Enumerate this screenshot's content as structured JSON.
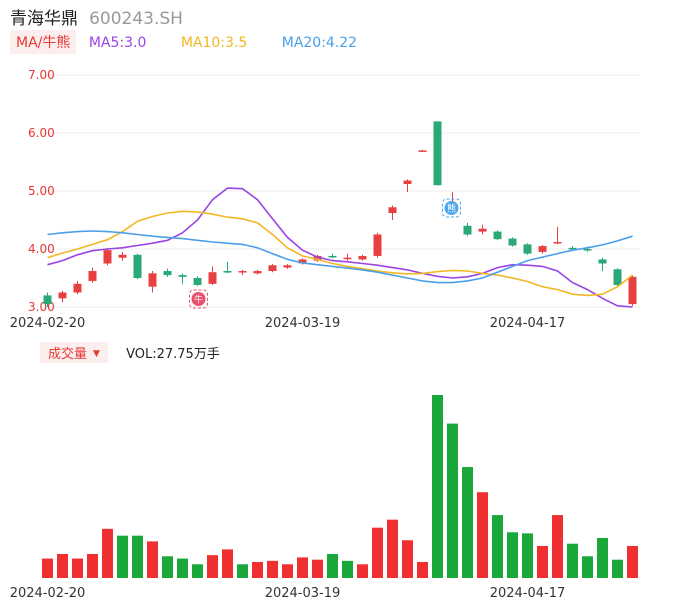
{
  "header": {
    "name": "青海华鼎",
    "code": "600243.SH"
  },
  "ma": {
    "tag": "MA/牛熊",
    "items": [
      {
        "label": "MA5:3.0",
        "color": "#9b44e6"
      },
      {
        "label": "MA10:3.5",
        "color": "#f2b824"
      },
      {
        "label": "MA20:4.22",
        "color": "#4b9fe8"
      }
    ]
  },
  "volume": {
    "tag": "成交量",
    "label": "VOL:27.75万手"
  },
  "icons": {
    "bull": "牛",
    "bear": "熊"
  },
  "colors": {
    "up": "#e84040",
    "down": "#2aa876",
    "volUp": "#f03030",
    "volDown": "#1aa83a",
    "axis": "#e53935",
    "bullBadge": "#e8506a",
    "bearBadge": "#4aa8e8"
  },
  "chart_data": [
    {
      "type": "candlestick",
      "y_ticks": [
        "7.00",
        "6.00",
        "5.00",
        "4.00",
        "3.00"
      ],
      "ylim": [
        3.0,
        7.0
      ],
      "x_tick_labels": [
        {
          "label": "2024-02-20",
          "index": 0
        },
        {
          "label": "2024-03-19",
          "index": 17
        },
        {
          "label": "2024-04-17",
          "index": 32
        }
      ],
      "candles": [
        {
          "o": 3.2,
          "c": 3.05,
          "h": 3.25,
          "l": 3.0
        },
        {
          "o": 3.15,
          "c": 3.25,
          "h": 3.28,
          "l": 3.08
        },
        {
          "o": 3.25,
          "c": 3.4,
          "h": 3.45,
          "l": 3.22
        },
        {
          "o": 3.45,
          "c": 3.62,
          "h": 3.68,
          "l": 3.42
        },
        {
          "o": 3.75,
          "c": 3.98,
          "h": 4.02,
          "l": 3.72
        },
        {
          "o": 3.85,
          "c": 3.9,
          "h": 3.95,
          "l": 3.8
        },
        {
          "o": 3.9,
          "c": 3.5,
          "h": 3.92,
          "l": 3.48
        },
        {
          "o": 3.35,
          "c": 3.58,
          "h": 3.62,
          "l": 3.25
        },
        {
          "o": 3.62,
          "c": 3.55,
          "h": 3.66,
          "l": 3.52
        },
        {
          "o": 3.55,
          "c": 3.52,
          "h": 3.58,
          "l": 3.4
        },
        {
          "o": 3.5,
          "c": 3.38,
          "h": 3.53,
          "l": 3.36
        },
        {
          "o": 3.4,
          "c": 3.6,
          "h": 3.7,
          "l": 3.38
        },
        {
          "o": 3.62,
          "c": 3.61,
          "h": 3.78,
          "l": 3.58
        },
        {
          "o": 3.6,
          "c": 3.62,
          "h": 3.64,
          "l": 3.55
        },
        {
          "o": 3.58,
          "c": 3.62,
          "h": 3.64,
          "l": 3.56
        },
        {
          "o": 3.62,
          "c": 3.72,
          "h": 3.74,
          "l": 3.6
        },
        {
          "o": 3.68,
          "c": 3.72,
          "h": 3.74,
          "l": 3.66
        },
        {
          "o": 3.75,
          "c": 3.82,
          "h": 3.84,
          "l": 3.73
        },
        {
          "o": 3.8,
          "c": 3.88,
          "h": 3.9,
          "l": 3.78
        },
        {
          "o": 3.88,
          "c": 3.86,
          "h": 3.92,
          "l": 3.84
        },
        {
          "o": 3.84,
          "c": 3.85,
          "h": 3.92,
          "l": 3.8
        },
        {
          "o": 3.82,
          "c": 3.88,
          "h": 3.9,
          "l": 3.8
        },
        {
          "o": 3.88,
          "c": 4.25,
          "h": 4.28,
          "l": 3.85
        },
        {
          "o": 4.62,
          "c": 4.72,
          "h": 4.75,
          "l": 4.5
        },
        {
          "o": 5.12,
          "c": 5.18,
          "h": 5.2,
          "l": 4.98
        },
        {
          "o": 5.69,
          "c": 5.7,
          "h": 5.71,
          "l": 5.68
        },
        {
          "o": 6.2,
          "c": 5.1,
          "h": 6.2,
          "l": 5.1
        },
        {
          "o": 4.62,
          "c": 4.68,
          "h": 4.98,
          "l": 4.6
        },
        {
          "o": 4.4,
          "c": 4.25,
          "h": 4.45,
          "l": 4.22
        },
        {
          "o": 4.3,
          "c": 4.35,
          "h": 4.42,
          "l": 4.25
        },
        {
          "o": 4.3,
          "c": 4.17,
          "h": 4.32,
          "l": 4.15
        },
        {
          "o": 4.18,
          "c": 4.06,
          "h": 4.2,
          "l": 4.04
        },
        {
          "o": 4.08,
          "c": 3.92,
          "h": 4.1,
          "l": 3.9
        },
        {
          "o": 3.95,
          "c": 4.05,
          "h": 4.07,
          "l": 3.92
        },
        {
          "o": 4.1,
          "c": 4.12,
          "h": 4.38,
          "l": 4.08
        },
        {
          "o": 4.02,
          "c": 4.0,
          "h": 4.05,
          "l": 3.98
        },
        {
          "o": 4.0,
          "c": 3.98,
          "h": 4.04,
          "l": 3.95
        },
        {
          "o": 3.82,
          "c": 3.75,
          "h": 3.85,
          "l": 3.62
        },
        {
          "o": 3.65,
          "c": 3.38,
          "h": 3.67,
          "l": 3.35
        },
        {
          "o": 3.05,
          "c": 3.52,
          "h": 3.55,
          "l": 3.02
        }
      ],
      "series": [
        {
          "name": "MA5",
          "values": [
            3.73,
            3.8,
            3.9,
            3.97,
            4.0,
            4.02,
            4.06,
            4.1,
            4.15,
            4.28,
            4.5,
            4.85,
            5.05,
            5.04,
            4.85,
            4.52,
            4.2,
            3.98,
            3.86,
            3.8,
            3.78,
            3.75,
            3.72,
            3.68,
            3.64,
            3.58,
            3.53,
            3.5,
            3.52,
            3.58,
            3.68,
            3.73,
            3.72,
            3.7,
            3.62,
            3.42,
            3.3,
            3.15,
            3.02,
            3.0
          ]
        },
        {
          "name": "MA10",
          "values": [
            3.85,
            3.93,
            4.0,
            4.08,
            4.16,
            4.3,
            4.48,
            4.56,
            4.62,
            4.65,
            4.64,
            4.6,
            4.55,
            4.52,
            4.45,
            4.25,
            4.02,
            3.88,
            3.82,
            3.75,
            3.7,
            3.66,
            3.62,
            3.59,
            3.57,
            3.58,
            3.61,
            3.63,
            3.62,
            3.58,
            3.55,
            3.5,
            3.44,
            3.35,
            3.3,
            3.22,
            3.2,
            3.22,
            3.35,
            3.55
          ]
        },
        {
          "name": "MA20",
          "values": [
            4.25,
            4.28,
            4.3,
            4.31,
            4.3,
            4.28,
            4.25,
            4.22,
            4.2,
            4.18,
            4.15,
            4.12,
            4.1,
            4.08,
            4.02,
            3.92,
            3.82,
            3.76,
            3.73,
            3.7,
            3.67,
            3.64,
            3.6,
            3.55,
            3.5,
            3.45,
            3.42,
            3.42,
            3.45,
            3.5,
            3.6,
            3.7,
            3.8,
            3.86,
            3.92,
            3.98,
            4.02,
            4.07,
            4.14,
            4.22
          ]
        }
      ]
    },
    {
      "type": "bar",
      "title": "VOL",
      "x_tick_labels": [
        {
          "label": "2024-02-20",
          "index": 0
        },
        {
          "label": "2024-03-19",
          "index": 17
        },
        {
          "label": "2024-04-17",
          "index": 32
        }
      ],
      "values": [
        {
          "v": 8.5,
          "d": "up"
        },
        {
          "v": 10.5,
          "d": "up"
        },
        {
          "v": 8.5,
          "d": "up"
        },
        {
          "v": 10.5,
          "d": "up"
        },
        {
          "v": 21.5,
          "d": "up"
        },
        {
          "v": 18.5,
          "d": "down"
        },
        {
          "v": 18.5,
          "d": "down"
        },
        {
          "v": 16.0,
          "d": "up"
        },
        {
          "v": 9.5,
          "d": "down"
        },
        {
          "v": 8.5,
          "d": "down"
        },
        {
          "v": 6.0,
          "d": "down"
        },
        {
          "v": 10.0,
          "d": "up"
        },
        {
          "v": 12.5,
          "d": "up"
        },
        {
          "v": 6.0,
          "d": "down"
        },
        {
          "v": 7.0,
          "d": "up"
        },
        {
          "v": 7.5,
          "d": "up"
        },
        {
          "v": 6.0,
          "d": "up"
        },
        {
          "v": 9.0,
          "d": "up"
        },
        {
          "v": 8.0,
          "d": "up"
        },
        {
          "v": 10.5,
          "d": "down"
        },
        {
          "v": 7.5,
          "d": "down"
        },
        {
          "v": 6.0,
          "d": "up"
        },
        {
          "v": 22.0,
          "d": "up"
        },
        {
          "v": 25.5,
          "d": "up"
        },
        {
          "v": 16.5,
          "d": "up"
        },
        {
          "v": 7.0,
          "d": "up"
        },
        {
          "v": 80.0,
          "d": "down"
        },
        {
          "v": 67.5,
          "d": "down"
        },
        {
          "v": 48.5,
          "d": "down"
        },
        {
          "v": 37.5,
          "d": "up"
        },
        {
          "v": 27.5,
          "d": "down"
        },
        {
          "v": 20.0,
          "d": "down"
        },
        {
          "v": 19.5,
          "d": "down"
        },
        {
          "v": 14.0,
          "d": "up"
        },
        {
          "v": 27.5,
          "d": "up"
        },
        {
          "v": 15.0,
          "d": "down"
        },
        {
          "v": 9.5,
          "d": "down"
        },
        {
          "v": 17.5,
          "d": "down"
        },
        {
          "v": 8.0,
          "d": "down"
        },
        {
          "v": 14.0,
          "d": "up"
        }
      ]
    }
  ]
}
